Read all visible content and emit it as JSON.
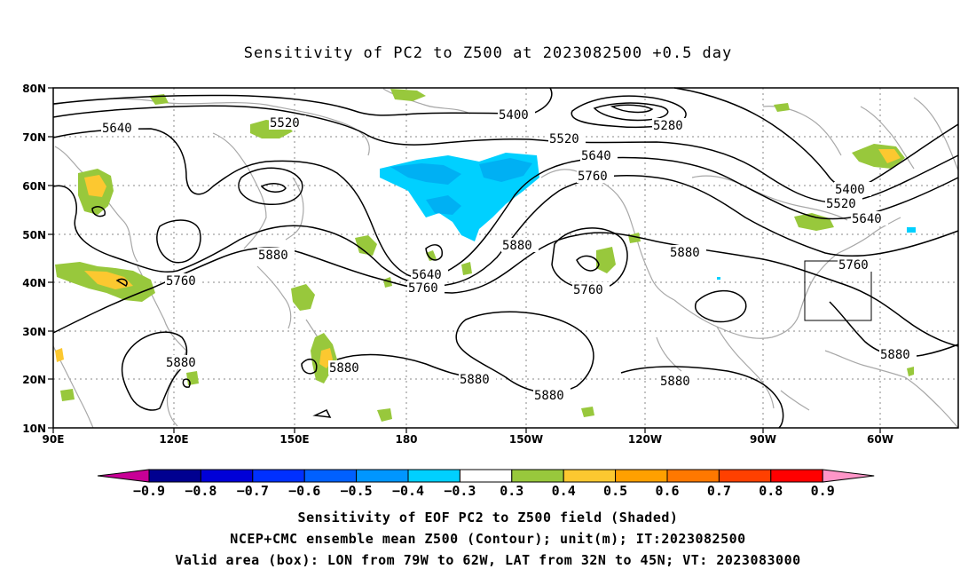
{
  "title": "Sensitivity of PC2 to Z500 at 2023082500 +0.5 day",
  "lat_ticks": [
    "80N",
    "70N",
    "60N",
    "50N",
    "40N",
    "30N",
    "20N",
    "10N"
  ],
  "lon_ticks": [
    "90E",
    "120E",
    "150E",
    "180",
    "150W",
    "120W",
    "90W",
    "60W"
  ],
  "contour_labels": {
    "c5640_w": "5640",
    "c5520_w": "5520",
    "c5400": "5400",
    "c5280": "5280",
    "c5520_c": "5520",
    "c5640_c": "5640",
    "c5760_c": "5760",
    "c5880_w": "5880",
    "c5760_w": "5760",
    "c5640_t": "5640",
    "c5760_t": "5760",
    "c5880_c": "5880",
    "c5760_low": "5760",
    "c5880_e": "5880",
    "c5400_e": "5400",
    "c5520_e": "5520",
    "c5640_e": "5640",
    "c5760_e": "5760",
    "c5880_sw": "5880",
    "c5880_s": "5880",
    "c5880_s2": "5880",
    "c5880_s3": "5880",
    "c5880_se": "5880",
    "c5880_far": "5880"
  },
  "colorbar": {
    "labels": [
      "−0.9",
      "−0.8",
      "−0.7",
      "−0.6",
      "−0.5",
      "−0.4",
      "−0.3",
      "0.3",
      "0.4",
      "0.5",
      "0.6",
      "0.7",
      "0.8",
      "0.9"
    ],
    "colors": [
      "#000090",
      "#0000d8",
      "#0030ff",
      "#0060ff",
      "#0096ff",
      "#00d0ff",
      "#ffffff",
      "#98c83c",
      "#fcc830",
      "#ffa000",
      "#ff7800",
      "#ff4000",
      "#ff0000"
    ],
    "left_tip_color": "#c80096",
    "right_tip_color": "#ff96c8"
  },
  "captions": [
    "Sensitivity of EOF PC2 to Z500 field (Shaded)",
    "NCEP+CMC ensemble mean Z500 (Contour); unit(m); IT:2023082500",
    "Valid area (box): LON from 79W to 62W, LAT from 32N to 45N; VT: 2023083000"
  ]
}
